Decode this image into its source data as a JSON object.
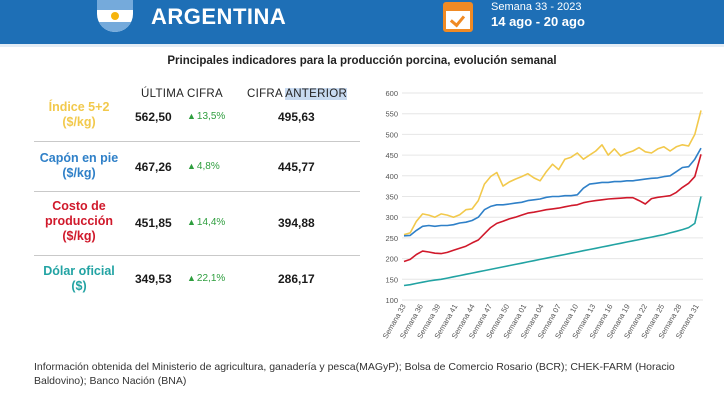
{
  "header": {
    "country": "ARGENTINA",
    "week_label": "Semana 33 - 2023",
    "date_range": "14 ago - 20 ago",
    "colors": {
      "bar": "#1e6fb6",
      "accent": "#f08a24"
    }
  },
  "subtitle": "Principales indicadores para la producción porcina, evolución semanal",
  "table": {
    "col_latest_label": "ÚLTIMA CIFRA",
    "col_previous_label_a": "CIFRA ",
    "col_previous_label_b": "ANTERIOR",
    "rows": [
      {
        "label_line1": "Índice 5+2",
        "label_line2": "($/kg)",
        "label_line3": "",
        "latest": "562,50",
        "change": "13,5%",
        "previous": "495,63",
        "color": "#f2c94c"
      },
      {
        "label_line1": "Capón en pie",
        "label_line2": "($/kg)",
        "label_line3": "",
        "latest": "467,26",
        "change": "4,8%",
        "previous": "445,77",
        "color": "#2f80c8"
      },
      {
        "label_line1": "Costo de",
        "label_line2": "producción",
        "label_line3": "($/kg)",
        "latest": "451,85",
        "change": "14,4%",
        "previous": "394,88",
        "color": "#d0192b"
      },
      {
        "label_line1": "Dólar oficial",
        "label_line2": "($)",
        "label_line3": "",
        "latest": "349,53",
        "change": "22,1%",
        "previous": "286,17",
        "color": "#22a3a3"
      }
    ]
  },
  "chart_data": {
    "type": "line",
    "ylim": [
      100,
      600
    ],
    "yticks": [
      100,
      150,
      200,
      250,
      300,
      350,
      400,
      450,
      500,
      550,
      600
    ],
    "x_tick_labels": [
      "Semana 33",
      "Semana 36",
      "Semana 39",
      "Semana 41",
      "Semana 44",
      "Semana 47",
      "Semana 50",
      "Semana 01",
      "Semana 04",
      "Semana 07",
      "Semana 10",
      "Semana 13",
      "Semana 16",
      "Semana 19",
      "Semana 22",
      "Semana 25",
      "Semana 28",
      "Semana 31"
    ],
    "series": [
      {
        "color": "#f2c94c",
        "values": [
          258,
          262,
          290,
          308,
          305,
          300,
          308,
          305,
          300,
          306,
          318,
          320,
          340,
          380,
          398,
          408,
          375,
          385,
          392,
          398,
          405,
          395,
          388,
          410,
          428,
          415,
          440,
          445,
          455,
          440,
          450,
          460,
          475,
          450,
          465,
          448,
          455,
          460,
          468,
          458,
          455,
          465,
          470,
          460,
          470,
          475,
          472,
          500,
          558
        ]
      },
      {
        "color": "#2f80c8",
        "values": [
          255,
          256,
          268,
          278,
          280,
          278,
          280,
          280,
          282,
          286,
          288,
          292,
          300,
          318,
          326,
          330,
          330,
          332,
          334,
          336,
          340,
          342,
          344,
          348,
          350,
          350,
          352,
          352,
          354,
          370,
          380,
          382,
          384,
          384,
          386,
          386,
          388,
          388,
          390,
          392,
          394,
          395,
          398,
          400,
          410,
          420,
          422,
          440,
          467
        ]
      },
      {
        "color": "#d0192b",
        "values": [
          193,
          198,
          210,
          218,
          216,
          213,
          212,
          215,
          220,
          225,
          230,
          238,
          245,
          260,
          275,
          285,
          290,
          296,
          300,
          305,
          310,
          312,
          315,
          318,
          320,
          322,
          325,
          328,
          330,
          335,
          338,
          340,
          342,
          344,
          345,
          346,
          347,
          347,
          340,
          332,
          345,
          348,
          350,
          352,
          360,
          372,
          382,
          398,
          452
        ]
      },
      {
        "color": "#22a3a3",
        "values": [
          135,
          137,
          140,
          143,
          146,
          148,
          150,
          153,
          156,
          159,
          162,
          165,
          168,
          171,
          174,
          177,
          180,
          183,
          186,
          189,
          192,
          195,
          198,
          201,
          204,
          207,
          210,
          213,
          216,
          219,
          222,
          225,
          228,
          231,
          234,
          237,
          240,
          243,
          246,
          249,
          252,
          255,
          258,
          262,
          266,
          270,
          275,
          285,
          350
        ]
      }
    ]
  },
  "footnote": "Información obtenida del Ministerio de agricultura, ganadería y pesca(MAGyP); Bolsa de Comercio Rosario (BCR); CHEK-FARM (Horacio Baldovino); Banco Nación (BNA)"
}
